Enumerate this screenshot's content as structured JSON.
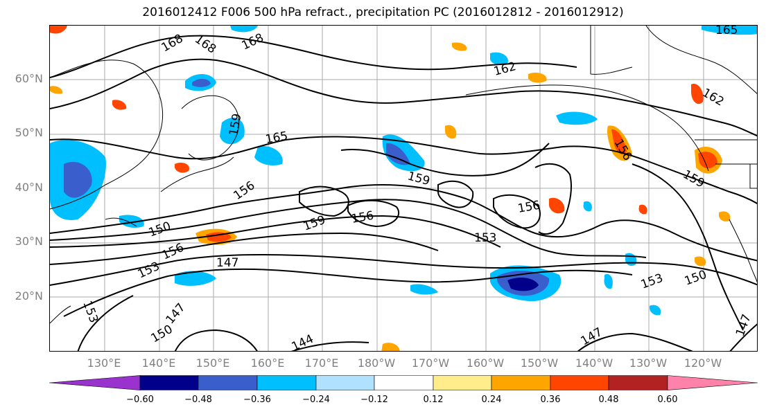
{
  "title": "2016012412 F006 500 hPa refract., precipitation PC (2016012812 - 2016012912)",
  "lat_labels": [
    "60°N",
    "50°N",
    "40°N",
    "30°N",
    "20°N"
  ],
  "lon_labels": [
    "130°E",
    "140°E",
    "150°E",
    "160°E",
    "170°E",
    "180°W",
    "170°W",
    "160°W",
    "150°W",
    "140°W",
    "130°W",
    "120°W"
  ],
  "colorbar": {
    "ticks": [
      "−0.60",
      "−0.48",
      "−0.36",
      "−0.24",
      "−0.12",
      "0.12",
      "0.24",
      "0.36",
      "0.48",
      "0.60"
    ],
    "colors": [
      "#9a32cd",
      "#00008b",
      "#3a5fcd",
      "#00bfff",
      "#b0e2ff",
      "#ffffff",
      "#ffec8b",
      "#ffa500",
      "#ff4500",
      "#b22222",
      "#ff82ab"
    ]
  },
  "contour_labels": [
    "168",
    "168",
    "168",
    "165",
    "165",
    "162",
    "162",
    "159",
    "159",
    "159",
    "159",
    "156",
    "156",
    "156",
    "156",
    "156",
    "153",
    "153",
    "153",
    "153",
    "150",
    "150",
    "150",
    "147",
    "147",
    "147",
    "147",
    "144"
  ]
}
